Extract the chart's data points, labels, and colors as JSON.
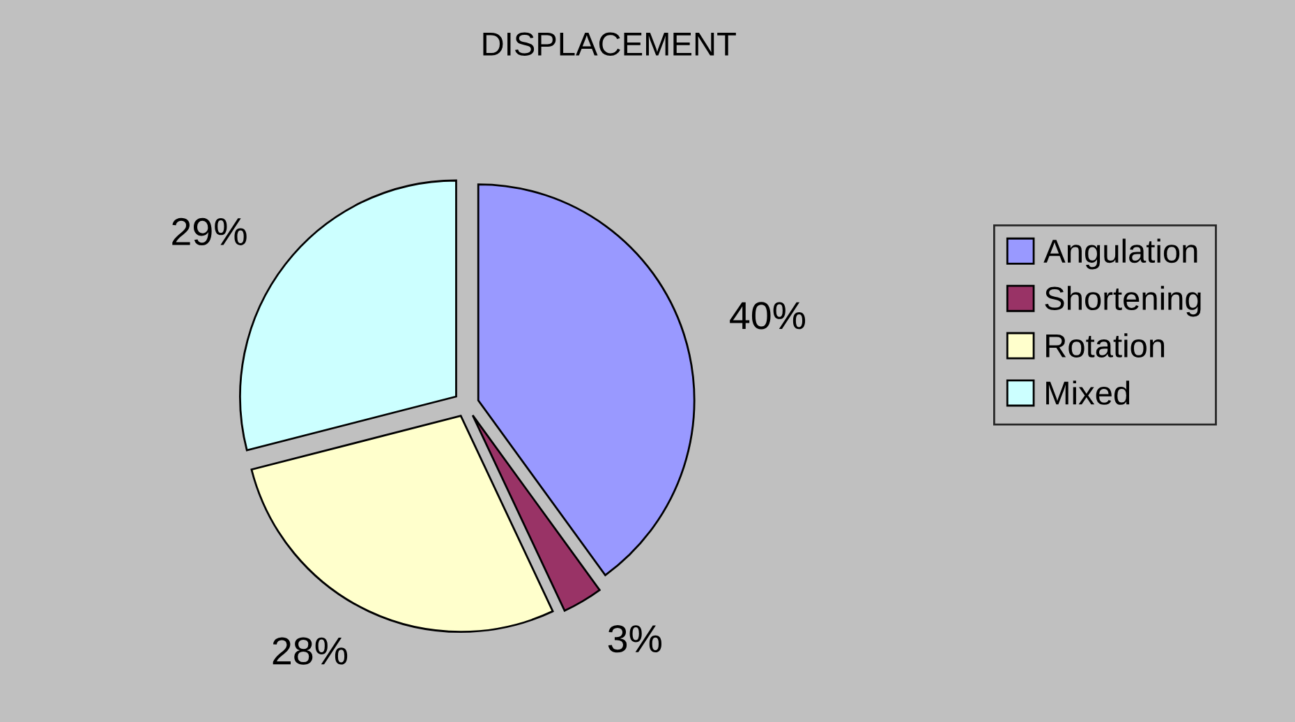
{
  "chart_data": {
    "type": "pie",
    "title": "DISPLACEMENT",
    "categories": [
      "Angulation",
      "Shortening",
      "Rotation",
      "Mixed"
    ],
    "values": [
      40,
      3,
      28,
      29
    ],
    "colors": [
      "#9999ff",
      "#993366",
      "#ffffcc",
      "#ccffff"
    ],
    "value_labels": [
      "40%",
      "3%",
      "28%",
      "29%"
    ],
    "legend": "right"
  }
}
